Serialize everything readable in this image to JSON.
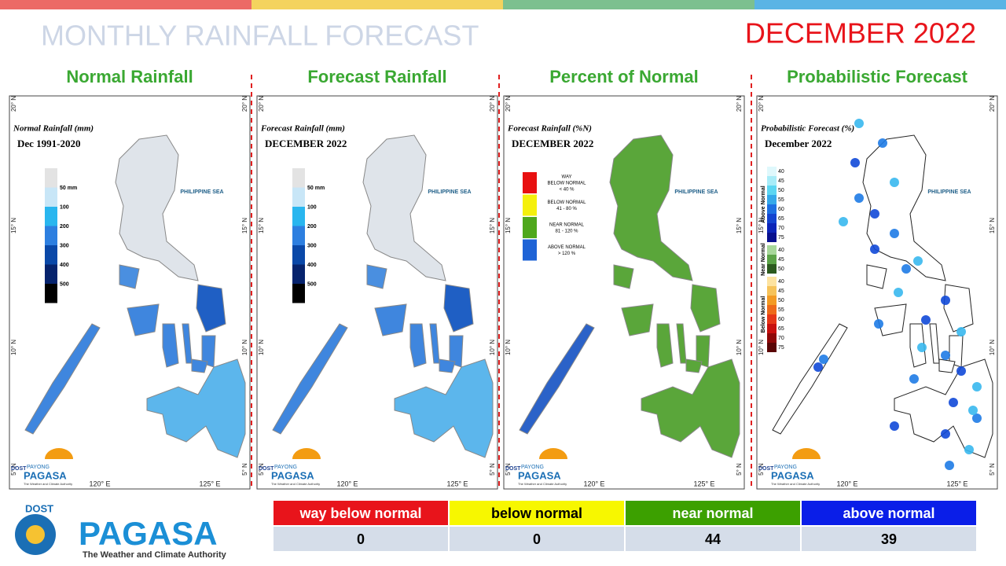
{
  "header": {
    "title": "MONTHLY RAINFALL FORECAST",
    "period": "DECEMBER 2022"
  },
  "map_labels": {
    "lat": [
      "20° N",
      "15° N",
      "10° N",
      "5° N"
    ],
    "lon": [
      "120° E",
      "125° E"
    ],
    "sea": "PHILIPPINE SEA",
    "logo_agency": "DOST",
    "logo_top": "PAYONG",
    "logo_name": "PAGASA",
    "logo_tagline": "The Weather and Climate Authority"
  },
  "panels": [
    {
      "title": "Normal Rainfall",
      "legend_title": "Normal Rainfall (mm)",
      "legend_subtitle": "Dec 1991-2020",
      "legend": [
        "50 mm",
        "100",
        "200",
        "300",
        "400",
        "500"
      ]
    },
    {
      "title": "Forecast Rainfall",
      "legend_title": "Forecast Rainfall (mm)",
      "legend_subtitle": "DECEMBER 2022",
      "legend": [
        "50 mm",
        "100",
        "200",
        "300",
        "400",
        "500"
      ]
    },
    {
      "title": "Percent of Normal",
      "legend_title": "Forecast Rainfall (%N)",
      "legend_subtitle": "DECEMBER 2022",
      "legend": [
        [
          "WAY",
          "BELOW NORMAL",
          "< 40 %"
        ],
        [
          "BELOW NORMAL",
          "41 - 80 %"
        ],
        [
          "NEAR NORMAL",
          "81 - 120 %"
        ],
        [
          "ABOVE NORMAL",
          "> 120 %"
        ]
      ]
    },
    {
      "title": "Probabilistic Forecast",
      "legend_title": "Probabilistic Forecast (%)",
      "legend_subtitle": "December 2022",
      "legend": [
        {
          "label": "Above Normal",
          "levels": [
            40,
            45,
            50,
            55,
            60,
            65,
            70,
            75
          ]
        },
        {
          "label": "Near Normal",
          "levels": [
            40,
            45,
            50
          ]
        },
        {
          "label": "Below Normal",
          "levels": [
            40,
            45,
            50,
            55,
            60,
            65,
            70,
            75
          ]
        }
      ]
    }
  ],
  "footer": {
    "agency": "DOST",
    "name": "PAGASA",
    "tagline": "The Weather and Climate Authority"
  },
  "table": {
    "header": [
      "way below normal",
      "below normal",
      "near normal",
      "above normal"
    ],
    "rows": [
      [
        0,
        0,
        44,
        39
      ]
    ]
  }
}
